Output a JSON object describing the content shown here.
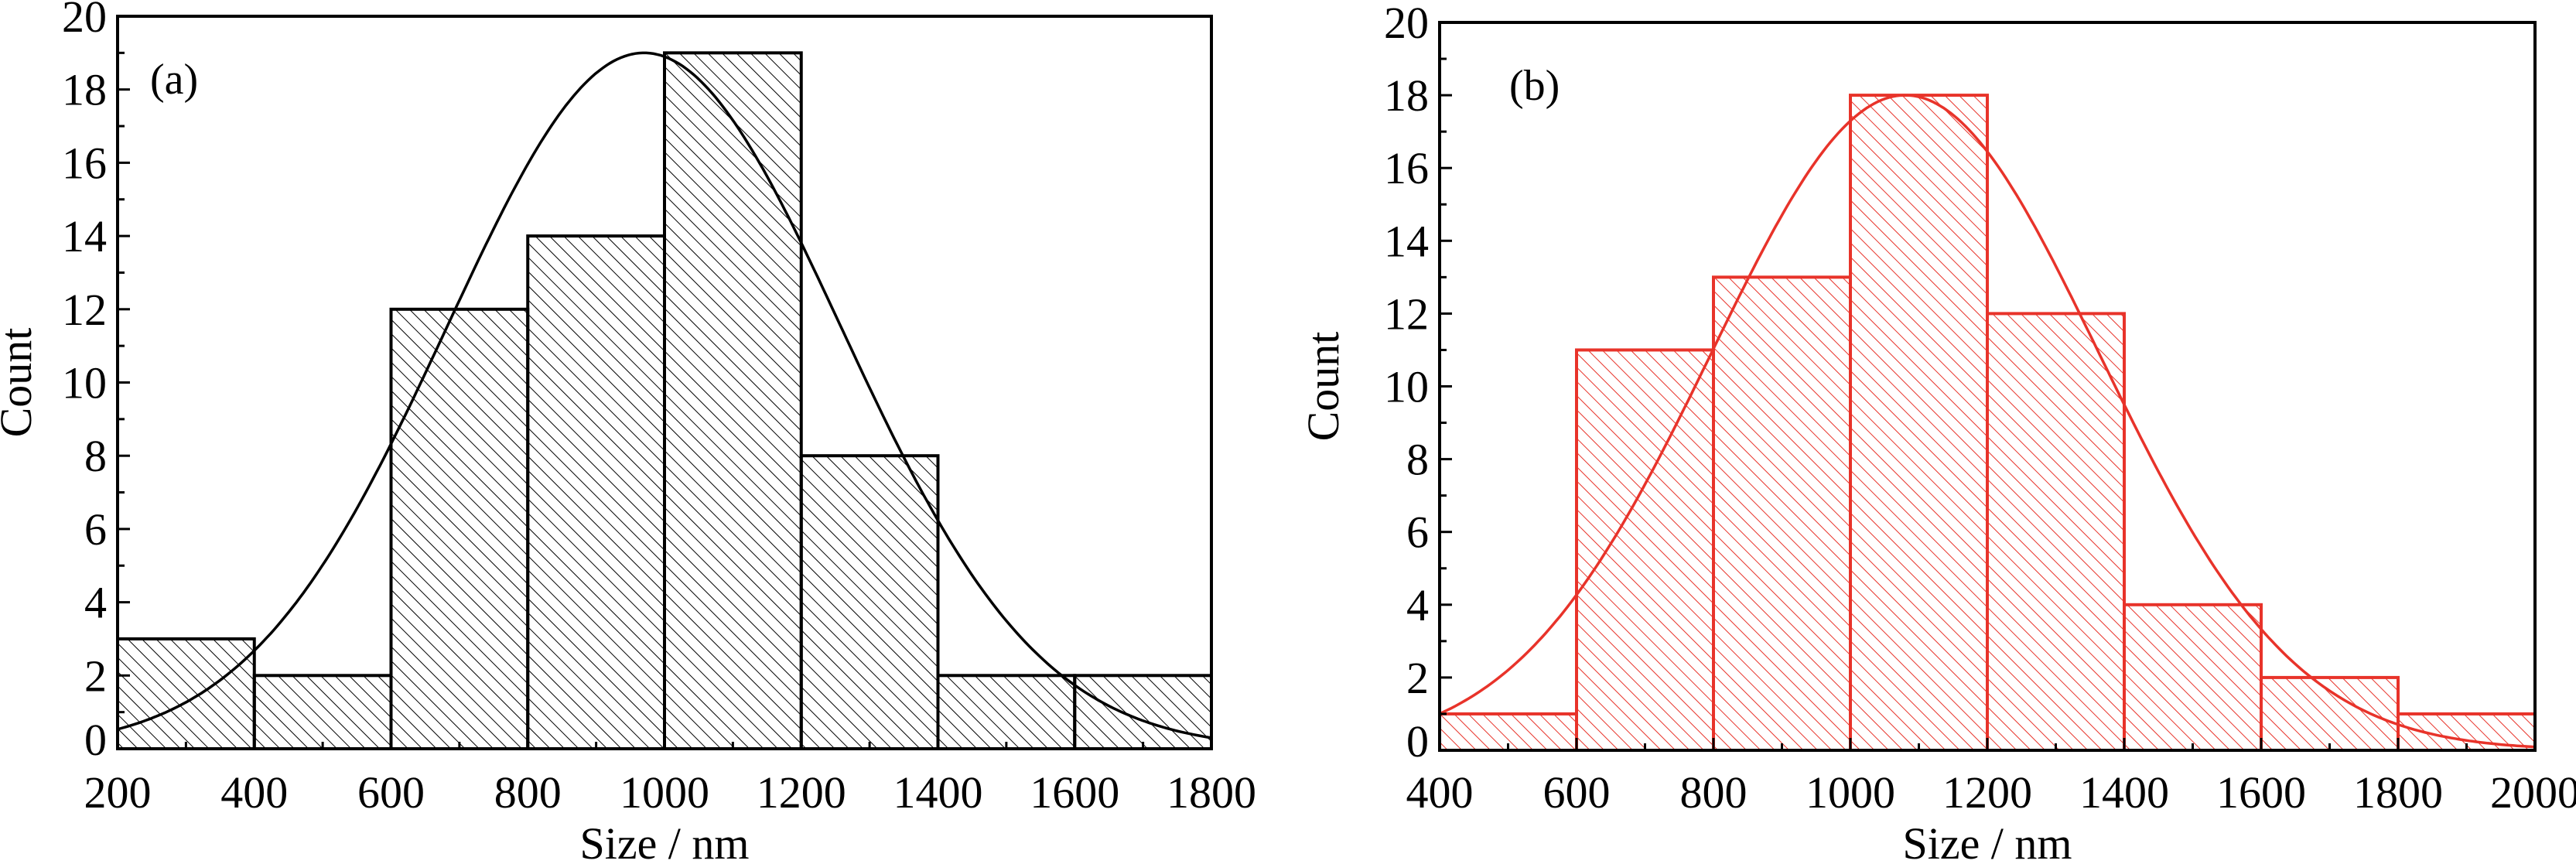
{
  "chart_data": [
    {
      "type": "bar",
      "panel_label": "(a)",
      "title": "",
      "xlabel": "Size / nm",
      "ylabel": "Count",
      "xlim": [
        200,
        1800
      ],
      "ylim": [
        0,
        20
      ],
      "x_ticks": [
        "200",
        "400",
        "600",
        "800",
        "1000",
        "1200",
        "1400",
        "1600",
        "1800"
      ],
      "y_ticks": [
        "0",
        "2",
        "4",
        "6",
        "8",
        "10",
        "12",
        "14",
        "16",
        "18",
        "20"
      ],
      "bin_edges": [
        200,
        400,
        600,
        800,
        1000,
        1200,
        1400,
        1600,
        1800
      ],
      "values": [
        3,
        2,
        12,
        14,
        19,
        8,
        2,
        2
      ],
      "fit": {
        "type": "gaussian",
        "amplitude": 19,
        "center": 970,
        "sigma": 288
      },
      "color": "#000000",
      "hatch": "diagonal",
      "grid": false
    },
    {
      "type": "bar",
      "panel_label": "(b)",
      "title": "",
      "xlabel": "Size / nm",
      "ylabel": "Count",
      "xlim": [
        400,
        2000
      ],
      "ylim": [
        0,
        20
      ],
      "x_ticks": [
        "400",
        "600",
        "800",
        "1000",
        "1200",
        "1400",
        "1600",
        "1800",
        "2000"
      ],
      "y_ticks": [
        "0",
        "2",
        "4",
        "6",
        "8",
        "10",
        "12",
        "14",
        "16",
        "18",
        "20"
      ],
      "bin_edges": [
        400,
        600,
        800,
        1000,
        1200,
        1400,
        1600,
        1800,
        2000
      ],
      "values": [
        1,
        11,
        13,
        18,
        12,
        4,
        2,
        1
      ],
      "fit": {
        "type": "gaussian",
        "amplitude": 18,
        "center": 1080,
        "sigma": 283
      },
      "color": "#e8332a",
      "hatch": "diagonal",
      "grid": false
    }
  ]
}
